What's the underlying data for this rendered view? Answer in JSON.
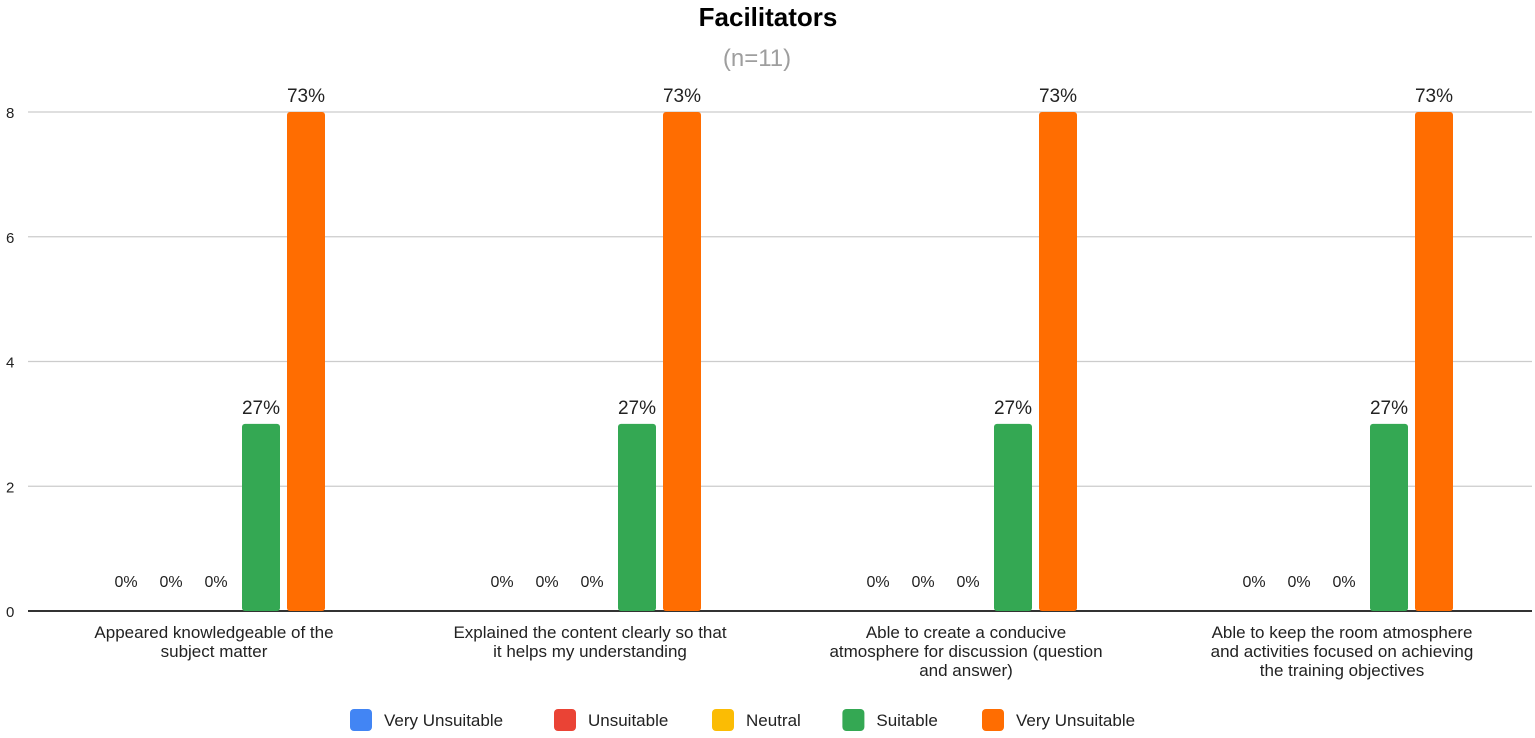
{
  "chart_data": {
    "type": "bar",
    "title": "Facilitators",
    "subtitle": "(n=11)",
    "xlabel": "",
    "ylabel": "",
    "ylim": [
      0,
      8
    ],
    "yticks": [
      0,
      2,
      4,
      6,
      8
    ],
    "grid": true,
    "legend_position": "bottom",
    "categories": [
      [
        "Appeared knowledgeable of the",
        "subject matter"
      ],
      [
        "Explained the content clearly so that",
        "it helps my understanding"
      ],
      [
        "Able to create a conducive",
        "atmosphere for discussion (question",
        "and answer)"
      ],
      [
        "Able to keep the room atmosphere",
        "and activities focused on achieving",
        "the training objectives"
      ]
    ],
    "series": [
      {
        "name": "Very Unsuitable",
        "color": "#4285f4",
        "values": [
          0,
          0,
          0,
          0
        ],
        "labels": [
          "0%",
          "0%",
          "0%",
          "0%"
        ]
      },
      {
        "name": "Unsuitable",
        "color": "#ea4335",
        "values": [
          0,
          0,
          0,
          0
        ],
        "labels": [
          "0%",
          "0%",
          "0%",
          "0%"
        ]
      },
      {
        "name": "Neutral",
        "color": "#fbbc04",
        "values": [
          0,
          0,
          0,
          0
        ],
        "labels": [
          "0%",
          "0%",
          "0%",
          "0%"
        ]
      },
      {
        "name": "Suitable",
        "color": "#34a853",
        "values": [
          3,
          3,
          3,
          3
        ],
        "labels": [
          "27%",
          "27%",
          "27%",
          "27%"
        ]
      },
      {
        "name": "Very Unsuitable",
        "color": "#ff6d01",
        "values": [
          8,
          8,
          8,
          8
        ],
        "labels": [
          "73%",
          "73%",
          "73%",
          "73%"
        ]
      }
    ]
  }
}
